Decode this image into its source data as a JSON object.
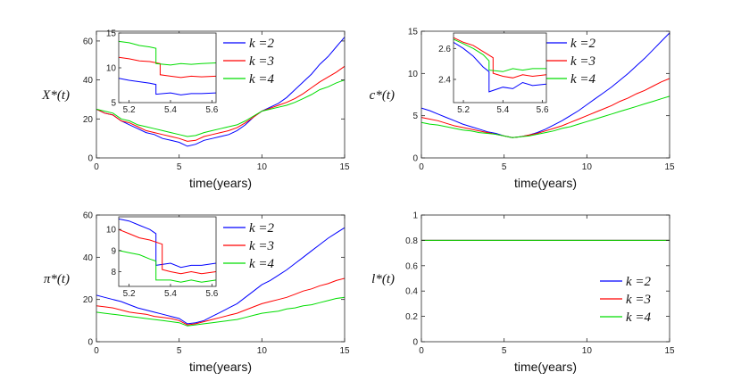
{
  "colors": {
    "k2": "#0000ff",
    "k3": "#ff0000",
    "k4": "#00dd00",
    "axis": "#262626"
  },
  "chart_data": [
    {
      "type": "line",
      "ylabel": "X*(t)",
      "xlabel": "time(years)",
      "xlim": [
        0,
        15
      ],
      "ylim": [
        0,
        65
      ],
      "xticks": [
        0,
        5,
        10,
        15
      ],
      "yticks": [
        0,
        20,
        40,
        60
      ],
      "legend_position": "top-right",
      "legend": [
        "k =2",
        "k =3",
        "k =4"
      ],
      "series": [
        {
          "name": "k =2",
          "color": "#0000ff",
          "x": [
            0,
            0.5,
            1,
            1.5,
            2,
            2.5,
            3,
            3.5,
            4,
            4.5,
            5,
            5.5,
            6,
            6.5,
            7,
            7.5,
            8,
            8.5,
            9,
            9.5,
            10,
            10.5,
            11,
            11.5,
            12,
            12.5,
            13,
            13.5,
            14,
            14.5,
            15
          ],
          "y": [
            25,
            23,
            22,
            19,
            17,
            15,
            13,
            12,
            10,
            9,
            8,
            6,
            7,
            9,
            10,
            11,
            12,
            14,
            17,
            21,
            24,
            26,
            28,
            31,
            35,
            39,
            43,
            48,
            52,
            57,
            62
          ]
        },
        {
          "name": "k =3",
          "color": "#ff0000",
          "x": [
            0,
            0.5,
            1,
            1.5,
            2,
            2.5,
            3,
            3.5,
            4,
            4.5,
            5,
            5.5,
            6,
            6.5,
            7,
            7.5,
            8,
            8.5,
            9,
            9.5,
            10,
            10.5,
            11,
            11.5,
            12,
            12.5,
            13,
            13.5,
            14,
            14.5,
            15
          ],
          "y": [
            25,
            23,
            22,
            19,
            18,
            16,
            14,
            13,
            12,
            11,
            10,
            8.5,
            9,
            11,
            12,
            13,
            14,
            15.5,
            18,
            21,
            24,
            25.5,
            27,
            28.5,
            30.5,
            33,
            36,
            39,
            41.5,
            44,
            47
          ]
        },
        {
          "name": "k =4",
          "color": "#00dd00",
          "x": [
            0,
            0.5,
            1,
            1.5,
            2,
            2.5,
            3,
            3.5,
            4,
            4.5,
            5,
            5.5,
            6,
            6.5,
            7,
            7.5,
            8,
            8.5,
            9,
            9.5,
            10,
            10.5,
            11,
            11.5,
            12,
            12.5,
            13,
            13.5,
            14,
            14.5,
            15
          ],
          "y": [
            25,
            24,
            23,
            20,
            19,
            17,
            16,
            15,
            14,
            13,
            12,
            11,
            11.5,
            13,
            14,
            15,
            16,
            17,
            19,
            21.5,
            24,
            25,
            26,
            27,
            28.5,
            30.5,
            32.5,
            35,
            36.5,
            38.5,
            40
          ]
        }
      ],
      "inset": {
        "xlim": [
          5.15,
          5.62
        ],
        "ylim": [
          5,
          15
        ],
        "xticks": [
          5.2,
          5.4,
          5.6
        ],
        "yticks": [
          5,
          10,
          15
        ],
        "series": [
          {
            "name": "k =2",
            "color": "#0000ff",
            "x": [
              5.15,
              5.2,
              5.25,
              5.3,
              5.33,
              5.33,
              5.4,
              5.45,
              5.5,
              5.55,
              5.62
            ],
            "y": [
              8.5,
              8.2,
              8.0,
              7.8,
              7.6,
              6.2,
              6.4,
              6.1,
              6.3,
              6.3,
              6.4
            ]
          },
          {
            "name": "k =3",
            "color": "#ff0000",
            "x": [
              5.15,
              5.2,
              5.25,
              5.3,
              5.35,
              5.35,
              5.4,
              5.45,
              5.5,
              5.55,
              5.62
            ],
            "y": [
              11.5,
              11.3,
              11.0,
              10.9,
              10.6,
              9.0,
              8.8,
              8.6,
              8.8,
              8.7,
              8.8
            ]
          },
          {
            "name": "k =4",
            "color": "#00dd00",
            "x": [
              5.15,
              5.2,
              5.25,
              5.3,
              5.33,
              5.33,
              5.4,
              5.45,
              5.5,
              5.55,
              5.62
            ],
            "y": [
              13.8,
              13.6,
              13.2,
              13.0,
              12.8,
              10.6,
              10.4,
              10.6,
              10.5,
              10.6,
              10.7
            ]
          }
        ]
      }
    },
    {
      "type": "line",
      "ylabel": "c*(t)",
      "xlabel": "time(years)",
      "xlim": [
        0,
        15
      ],
      "ylim": [
        0,
        15
      ],
      "xticks": [
        0,
        5,
        10,
        15
      ],
      "yticks": [
        0,
        5,
        10,
        15
      ],
      "legend_position": "top-right",
      "legend": [
        "k =2",
        "k =3",
        "k =4"
      ],
      "series": [
        {
          "name": "k =2",
          "color": "#0000ff",
          "x": [
            0,
            0.5,
            1,
            1.5,
            2,
            2.5,
            3,
            3.5,
            4,
            4.5,
            5,
            5.5,
            6,
            6.5,
            7,
            7.5,
            8,
            8.5,
            9,
            9.5,
            10,
            10.5,
            11,
            11.5,
            12,
            12.5,
            13,
            13.5,
            14,
            14.5,
            15
          ],
          "y": [
            5.9,
            5.6,
            5.2,
            4.8,
            4.4,
            4.0,
            3.7,
            3.4,
            3.1,
            2.9,
            2.6,
            2.4,
            2.5,
            2.7,
            3.0,
            3.4,
            3.9,
            4.4,
            5.0,
            5.6,
            6.3,
            7.0,
            7.7,
            8.4,
            9.2,
            10.0,
            10.9,
            11.8,
            12.8,
            13.8,
            14.8
          ]
        },
        {
          "name": "k =3",
          "color": "#ff0000",
          "x": [
            0,
            0.5,
            1,
            1.5,
            2,
            2.5,
            3,
            3.5,
            4,
            4.5,
            5,
            5.5,
            6,
            6.5,
            7,
            7.5,
            8,
            8.5,
            9,
            9.5,
            10,
            10.5,
            11,
            11.5,
            12,
            12.5,
            13,
            13.5,
            14,
            14.5,
            15
          ],
          "y": [
            4.8,
            4.6,
            4.4,
            4.1,
            3.8,
            3.6,
            3.4,
            3.2,
            3.0,
            2.8,
            2.6,
            2.4,
            2.5,
            2.7,
            2.9,
            3.2,
            3.5,
            3.8,
            4.2,
            4.6,
            5.0,
            5.4,
            5.8,
            6.2,
            6.7,
            7.1,
            7.6,
            8.0,
            8.5,
            9.0,
            9.4
          ]
        },
        {
          "name": "k =4",
          "color": "#00dd00",
          "x": [
            0,
            0.5,
            1,
            1.5,
            2,
            2.5,
            3,
            3.5,
            4,
            4.5,
            5,
            5.5,
            6,
            6.5,
            7,
            7.5,
            8,
            8.5,
            9,
            9.5,
            10,
            10.5,
            11,
            11.5,
            12,
            12.5,
            13,
            13.5,
            14,
            14.5,
            15
          ],
          "y": [
            4.2,
            4.0,
            3.9,
            3.7,
            3.5,
            3.3,
            3.2,
            3.0,
            2.9,
            2.8,
            2.6,
            2.4,
            2.5,
            2.6,
            2.8,
            3.0,
            3.2,
            3.5,
            3.7,
            4.0,
            4.3,
            4.6,
            4.9,
            5.2,
            5.5,
            5.8,
            6.1,
            6.4,
            6.7,
            7.0,
            7.3
          ]
        }
      ],
      "inset": {
        "xlim": [
          5.15,
          5.62
        ],
        "ylim": [
          2.25,
          2.7
        ],
        "xticks": [
          5.2,
          5.4,
          5.6
        ],
        "yticks": [
          2.4,
          2.6
        ],
        "series": [
          {
            "name": "k =2",
            "color": "#0000ff",
            "x": [
              5.15,
              5.2,
              5.25,
              5.3,
              5.33,
              5.33,
              5.4,
              5.45,
              5.5,
              5.55,
              5.62
            ],
            "y": [
              2.64,
              2.6,
              2.55,
              2.48,
              2.45,
              2.32,
              2.35,
              2.34,
              2.38,
              2.36,
              2.37
            ]
          },
          {
            "name": "k =3",
            "color": "#ff0000",
            "x": [
              5.15,
              5.2,
              5.25,
              5.3,
              5.35,
              5.35,
              5.4,
              5.45,
              5.5,
              5.55,
              5.62
            ],
            "y": [
              2.67,
              2.64,
              2.62,
              2.58,
              2.54,
              2.44,
              2.42,
              2.41,
              2.43,
              2.42,
              2.43
            ]
          },
          {
            "name": "k =4",
            "color": "#00dd00",
            "x": [
              5.15,
              5.2,
              5.25,
              5.3,
              5.33,
              5.33,
              5.4,
              5.45,
              5.5,
              5.55,
              5.62
            ],
            "y": [
              2.66,
              2.63,
              2.6,
              2.56,
              2.52,
              2.46,
              2.45,
              2.47,
              2.46,
              2.47,
              2.47
            ]
          }
        ]
      }
    },
    {
      "type": "line",
      "ylabel": "π*(t)",
      "xlabel": "time(years)",
      "xlim": [
        0,
        15
      ],
      "ylim": [
        0,
        60
      ],
      "xticks": [
        0,
        5,
        10,
        15
      ],
      "yticks": [
        0,
        20,
        40,
        60
      ],
      "legend_position": "top-right",
      "legend": [
        "k =2",
        "k =3",
        "k =4"
      ],
      "series": [
        {
          "name": "k =2",
          "color": "#0000ff",
          "x": [
            0,
            0.5,
            1,
            1.5,
            2,
            2.5,
            3,
            3.5,
            4,
            4.5,
            5,
            5.5,
            6,
            6.5,
            7,
            7.5,
            8,
            8.5,
            9,
            9.5,
            10,
            10.5,
            11,
            11.5,
            12,
            12.5,
            13,
            13.5,
            14,
            14.5,
            15
          ],
          "y": [
            22,
            21,
            20,
            19,
            17.5,
            16,
            15,
            14,
            13,
            12,
            11,
            8.5,
            9,
            10,
            12,
            14,
            16,
            18,
            21,
            24,
            27,
            29,
            31.5,
            34,
            37,
            40,
            43,
            46,
            49,
            51.5,
            54
          ]
        },
        {
          "name": "k =3",
          "color": "#ff0000",
          "x": [
            0,
            0.5,
            1,
            1.5,
            2,
            2.5,
            3,
            3.5,
            4,
            4.5,
            5,
            5.5,
            6,
            6.5,
            7,
            7.5,
            8,
            8.5,
            9,
            9.5,
            10,
            10.5,
            11,
            11.5,
            12,
            12.5,
            13,
            13.5,
            14,
            14.5,
            15
          ],
          "y": [
            17,
            16.5,
            16,
            15,
            14,
            13.5,
            13,
            12,
            11.5,
            11,
            10,
            8.0,
            8.5,
            9.5,
            10.5,
            11.5,
            12.5,
            13.5,
            15,
            16.5,
            18,
            19,
            20,
            21,
            22.5,
            24,
            25,
            26.5,
            27.5,
            29,
            30
          ]
        },
        {
          "name": "k =4",
          "color": "#00dd00",
          "x": [
            0,
            0.5,
            1,
            1.5,
            2,
            2.5,
            3,
            3.5,
            4,
            4.5,
            5,
            5.5,
            6,
            6.5,
            7,
            7.5,
            8,
            8.5,
            9,
            9.5,
            10,
            10.5,
            11,
            11.5,
            12,
            12.5,
            13,
            13.5,
            14,
            14.5,
            15
          ],
          "y": [
            14,
            13.5,
            13,
            12.5,
            12,
            11.5,
            11,
            10.5,
            10,
            9.5,
            9,
            7.5,
            8,
            8.5,
            9,
            9.5,
            10,
            10.5,
            11.5,
            12.5,
            13.5,
            14,
            14.5,
            15.5,
            16,
            17,
            17.5,
            18.5,
            19.5,
            20.5,
            21
          ]
        }
      ],
      "inset": {
        "xlim": [
          5.15,
          5.62
        ],
        "ylim": [
          7.3,
          10.6
        ],
        "xticks": [
          5.2,
          5.4,
          5.6
        ],
        "yticks": [
          8,
          9,
          10
        ],
        "series": [
          {
            "name": "k =2",
            "color": "#0000ff",
            "x": [
              5.15,
              5.2,
              5.25,
              5.3,
              5.33,
              5.33,
              5.4,
              5.45,
              5.5,
              5.55,
              5.62
            ],
            "y": [
              10.5,
              10.4,
              10.2,
              10.0,
              9.8,
              8.3,
              8.4,
              8.2,
              8.3,
              8.3,
              8.4
            ]
          },
          {
            "name": "k =3",
            "color": "#ff0000",
            "x": [
              5.15,
              5.2,
              5.25,
              5.3,
              5.36,
              5.36,
              5.4,
              5.45,
              5.5,
              5.55,
              5.62
            ],
            "y": [
              10.0,
              9.8,
              9.6,
              9.5,
              9.3,
              8.1,
              8.0,
              7.9,
              8.0,
              7.9,
              8.0
            ]
          },
          {
            "name": "k =4",
            "color": "#00dd00",
            "x": [
              5.15,
              5.2,
              5.25,
              5.3,
              5.33,
              5.33,
              5.4,
              5.45,
              5.5,
              5.55,
              5.62
            ],
            "y": [
              9.0,
              8.9,
              8.8,
              8.6,
              8.5,
              7.6,
              7.6,
              7.5,
              7.6,
              7.5,
              7.6
            ]
          }
        ]
      }
    },
    {
      "type": "line",
      "ylabel": "l*(t)",
      "xlabel": "time(years)",
      "xlim": [
        0,
        15
      ],
      "ylim": [
        0,
        1
      ],
      "xticks": [
        0,
        5,
        10,
        15
      ],
      "yticks": [
        0,
        0.2,
        0.4,
        0.6,
        0.8,
        1
      ],
      "legend_position": "bottom-right",
      "legend": [
        "k =2",
        "k =3",
        "k =4"
      ],
      "series": [
        {
          "name": "k =2",
          "color": "#0000ff",
          "x": [
            0,
            15
          ],
          "y": [
            0.8,
            0.8
          ]
        },
        {
          "name": "k =3",
          "color": "#ff0000",
          "x": [
            0,
            15
          ],
          "y": [
            0.8,
            0.8
          ]
        },
        {
          "name": "k =4",
          "color": "#00dd00",
          "x": [
            0,
            15
          ],
          "y": [
            0.8,
            0.8
          ]
        }
      ]
    }
  ]
}
